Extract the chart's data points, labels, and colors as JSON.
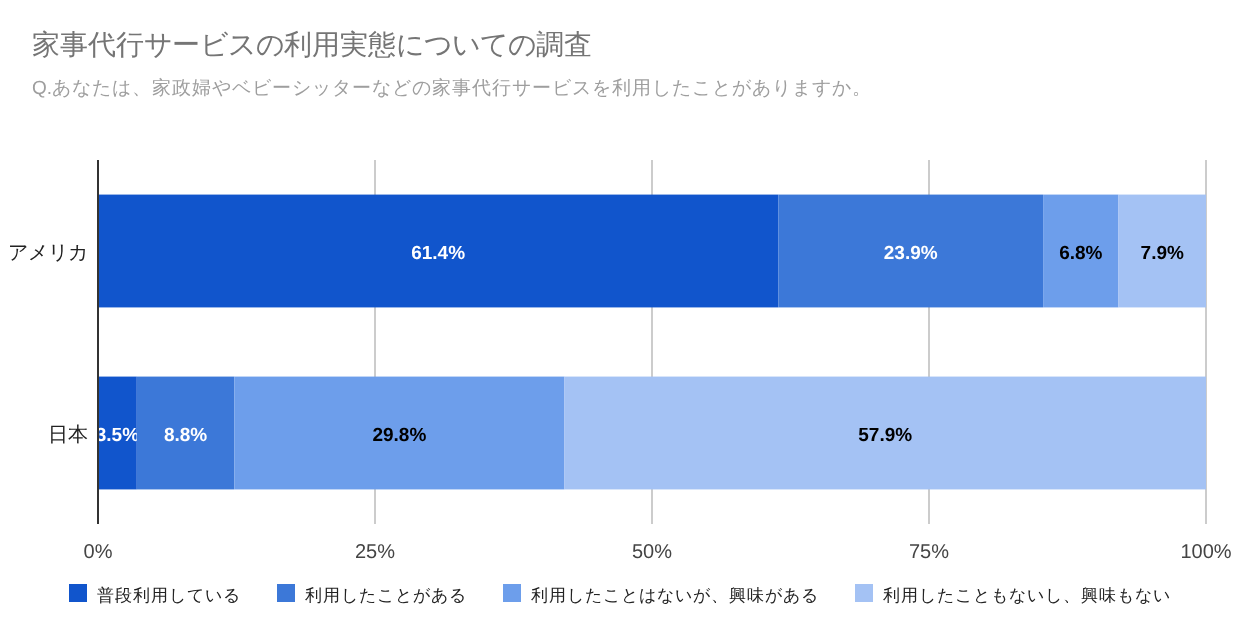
{
  "chart_data": {
    "type": "bar",
    "orientation": "horizontal",
    "stacked": true,
    "title": "家事代行サービスの利用実態についての調査",
    "subtitle": "Q.あなたは、家政婦やベビーシッターなどの家事代行サービスを利用したことがありますか。",
    "categories": [
      "アメリカ",
      "日本"
    ],
    "series": [
      {
        "name": "普段利用している",
        "color": "#1155cc",
        "values": [
          61.4,
          3.5
        ],
        "value_labels": [
          "61.4%",
          "3.5%"
        ]
      },
      {
        "name": "利用したことがある",
        "color": "#3c78d8",
        "values": [
          23.9,
          8.8
        ],
        "value_labels": [
          "23.9%",
          "8.8%"
        ]
      },
      {
        "name": "利用したことはないが、興味がある",
        "color": "#6d9eeb",
        "values": [
          6.8,
          29.8
        ],
        "value_labels": [
          "6.8%",
          "29.8%"
        ]
      },
      {
        "name": "利用したこともないし、興味もない",
        "color": "#a4c2f4",
        "values": [
          7.9,
          57.9
        ],
        "value_labels": [
          "7.9%",
          "57.9%"
        ]
      }
    ],
    "xlim": [
      0,
      100
    ],
    "xticks": [
      {
        "value": 0,
        "label": "0%"
      },
      {
        "value": 25,
        "label": "25%"
      },
      {
        "value": 50,
        "label": "50%"
      },
      {
        "value": 75,
        "label": "75%"
      },
      {
        "value": 100,
        "label": "100%"
      }
    ],
    "grid": "x",
    "legend": "bottom"
  }
}
